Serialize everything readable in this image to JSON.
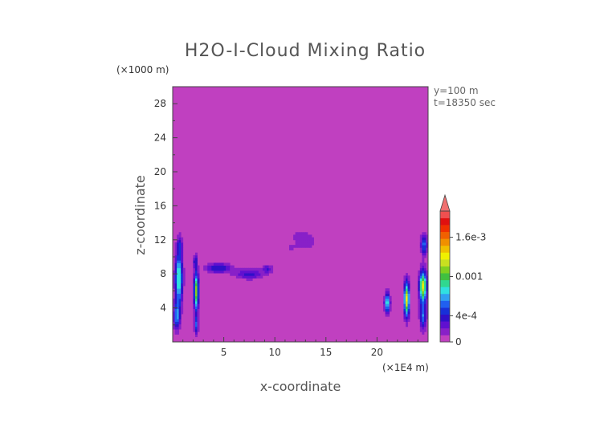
{
  "chart_data": {
    "type": "heatmap",
    "title": "H2O-I-Cloud Mixing Ratio",
    "xlabel": "x-coordinate",
    "ylabel": "z-coordinate",
    "x_unit": "(×1E4 m)",
    "y_unit": "(×1000 m)",
    "xlim": [
      0,
      25
    ],
    "ylim": [
      0,
      30
    ],
    "x_ticks": [
      5,
      10,
      15,
      20
    ],
    "y_ticks": [
      4,
      8,
      12,
      16,
      20,
      24,
      28
    ],
    "info": [
      "y=100 m",
      "t=18350 sec"
    ],
    "colorbar": {
      "colors": [
        "#c040c0",
        "#8820c8",
        "#6010d0",
        "#3010c8",
        "#1830d8",
        "#2060f0",
        "#30a0f0",
        "#30e0e0",
        "#30d890",
        "#40c040",
        "#80d020",
        "#c8e020",
        "#f0f000",
        "#f0c000",
        "#f09000",
        "#f06000",
        "#f03000",
        "#e01010",
        "#f05050"
      ],
      "extend_color": "#f07070",
      "labels": [
        {
          "text": "0",
          "value": 0
        },
        {
          "text": "4e-4",
          "value": 0.0004
        },
        {
          "text": "0.001",
          "value": 0.001
        },
        {
          "text": "1.6e-3",
          "value": 0.0016
        }
      ],
      "vmin": 0,
      "vmax": 0.002
    },
    "features": [
      {
        "x": 0.6,
        "z": 7.5,
        "sx": 0.35,
        "sz": 3.2,
        "v": 0.0009
      },
      {
        "x": 0.4,
        "z": 3.0,
        "sx": 0.3,
        "sz": 1.6,
        "v": 0.0006
      },
      {
        "x": 0.7,
        "z": 11.5,
        "sx": 0.25,
        "sz": 1.0,
        "v": 0.0003
      },
      {
        "x": 2.3,
        "z": 6.0,
        "sx": 0.22,
        "sz": 2.2,
        "v": 0.0011
      },
      {
        "x": 2.3,
        "z": 2.0,
        "sx": 0.2,
        "sz": 1.2,
        "v": 0.0005
      },
      {
        "x": 2.2,
        "z": 9.5,
        "sx": 0.18,
        "sz": 0.8,
        "v": 0.0004
      },
      {
        "x": 4.5,
        "z": 8.7,
        "sx": 1.3,
        "sz": 0.6,
        "v": 0.00042
      },
      {
        "x": 7.5,
        "z": 8.0,
        "sx": 1.4,
        "sz": 0.6,
        "v": 0.00036
      },
      {
        "x": 9.3,
        "z": 8.6,
        "sx": 0.5,
        "sz": 0.5,
        "v": 0.0003
      },
      {
        "x": 12.5,
        "z": 12.5,
        "sx": 1.5,
        "sz": 0.9,
        "v": 0.00012
      },
      {
        "x": 11.5,
        "z": 11.0,
        "sx": 1.2,
        "sz": 0.8,
        "v": 0.0001
      },
      {
        "x": 13.3,
        "z": 11.5,
        "sx": 1.0,
        "sz": 1.0,
        "v": 0.0001
      },
      {
        "x": 21.0,
        "z": 4.6,
        "sx": 0.25,
        "sz": 1.1,
        "v": 0.0009
      },
      {
        "x": 22.9,
        "z": 5.0,
        "sx": 0.25,
        "sz": 2.0,
        "v": 0.0013
      },
      {
        "x": 24.5,
        "z": 6.5,
        "sx": 0.35,
        "sz": 1.8,
        "v": 0.0013
      },
      {
        "x": 24.6,
        "z": 11.5,
        "sx": 0.3,
        "sz": 1.2,
        "v": 0.0006
      },
      {
        "x": 24.5,
        "z": 3.0,
        "sx": 0.3,
        "sz": 1.5,
        "v": 0.0006
      }
    ]
  }
}
